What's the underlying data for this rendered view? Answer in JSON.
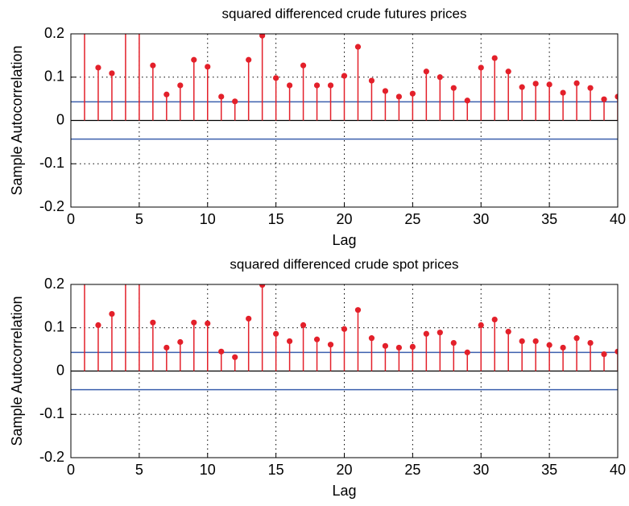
{
  "chart_data": [
    {
      "type": "stem",
      "title": "squared differenced crude futures prices",
      "xlabel": "Lag",
      "ylabel": "Sample Autocorrelation",
      "x": [
        1,
        2,
        3,
        4,
        5,
        6,
        7,
        8,
        9,
        10,
        11,
        12,
        13,
        14,
        15,
        16,
        17,
        18,
        19,
        20,
        21,
        22,
        23,
        24,
        25,
        26,
        27,
        28,
        29,
        30,
        31,
        32,
        33,
        34,
        35,
        36,
        37,
        38,
        39,
        40
      ],
      "values": [
        0.3,
        0.122,
        0.109,
        0.3,
        0.3,
        0.127,
        0.06,
        0.081,
        0.14,
        0.124,
        0.055,
        0.044,
        0.14,
        0.196,
        0.098,
        0.081,
        0.127,
        0.081,
        0.081,
        0.103,
        0.17,
        0.092,
        0.068,
        0.055,
        0.062,
        0.113,
        0.1,
        0.075,
        0.046,
        0.122,
        0.144,
        0.113,
        0.077,
        0.085,
        0.083,
        0.064,
        0.086,
        0.075,
        0.049,
        0.055
      ],
      "color": "#e3202a",
      "bounds": [
        0.043,
        -0.043
      ],
      "bounds_color": "#3b5fad",
      "xlim": [
        0,
        40
      ],
      "xticks": [
        0,
        5,
        10,
        15,
        20,
        25,
        30,
        35,
        40
      ],
      "ylim": [
        -0.2,
        0.2
      ],
      "yticks": [
        -0.2,
        -0.1,
        0,
        0.1,
        0.2
      ],
      "grid": true
    },
    {
      "type": "stem",
      "title": "squared differenced crude spot prices",
      "xlabel": "Lag",
      "ylabel": "Sample Autocorrelation",
      "x": [
        1,
        2,
        3,
        4,
        5,
        6,
        7,
        8,
        9,
        10,
        11,
        12,
        13,
        14,
        15,
        16,
        17,
        18,
        19,
        20,
        21,
        22,
        23,
        24,
        25,
        26,
        27,
        28,
        29,
        30,
        31,
        32,
        33,
        34,
        35,
        36,
        37,
        38,
        39,
        40
      ],
      "values": [
        0.3,
        0.106,
        0.132,
        0.3,
        0.3,
        0.112,
        0.054,
        0.067,
        0.112,
        0.11,
        0.045,
        0.032,
        0.121,
        0.199,
        0.086,
        0.069,
        0.106,
        0.073,
        0.061,
        0.097,
        0.141,
        0.076,
        0.058,
        0.054,
        0.056,
        0.086,
        0.089,
        0.065,
        0.043,
        0.106,
        0.119,
        0.091,
        0.069,
        0.069,
        0.06,
        0.054,
        0.076,
        0.065,
        0.039,
        0.045
      ],
      "color": "#e3202a",
      "bounds": [
        0.043,
        -0.043
      ],
      "bounds_color": "#3b5fad",
      "xlim": [
        0,
        40
      ],
      "xticks": [
        0,
        5,
        10,
        15,
        20,
        25,
        30,
        35,
        40
      ],
      "ylim": [
        -0.2,
        0.2
      ],
      "yticks": [
        -0.2,
        -0.1,
        0,
        0.1,
        0.2
      ],
      "grid": true
    }
  ]
}
